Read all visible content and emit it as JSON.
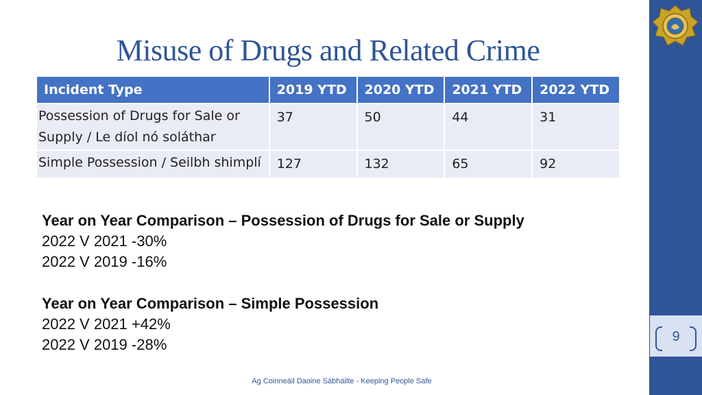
{
  "title": "Misuse of Drugs and Related Crime",
  "table": {
    "headers": [
      "Incident Type",
      "2019 YTD",
      "2020 YTD",
      "2021 YTD",
      "2022 YTD"
    ],
    "rows": [
      {
        "type": "Possession of Drugs for Sale or Supply / Le díol nó soláthar",
        "values": [
          "37",
          "50",
          "44",
          "31"
        ]
      },
      {
        "type": "Simple Possession / Seilbh shimplí",
        "values": [
          "127",
          "132",
          "65",
          "92"
        ]
      }
    ]
  },
  "comparisons": [
    {
      "heading": "Year on Year Comparison – Possession of Drugs for Sale or Supply",
      "lines": [
        "2022 V 2021 -30%",
        "2022 V 2019 -16%"
      ]
    },
    {
      "heading": "Year on Year Comparison – Simple Possession",
      "lines": [
        "2022 V 2021 +42%",
        "2022 V 2019 -28%"
      ]
    }
  ],
  "page_number": "9",
  "footer": "Ag Coinneáil Daoine Sábháilte - Keeping People Safe",
  "colors": {
    "accent": "#2f5597",
    "header_fill": "#4472c4",
    "row_fill": "#e9ebf5",
    "badge_gold": "#c9a227"
  }
}
